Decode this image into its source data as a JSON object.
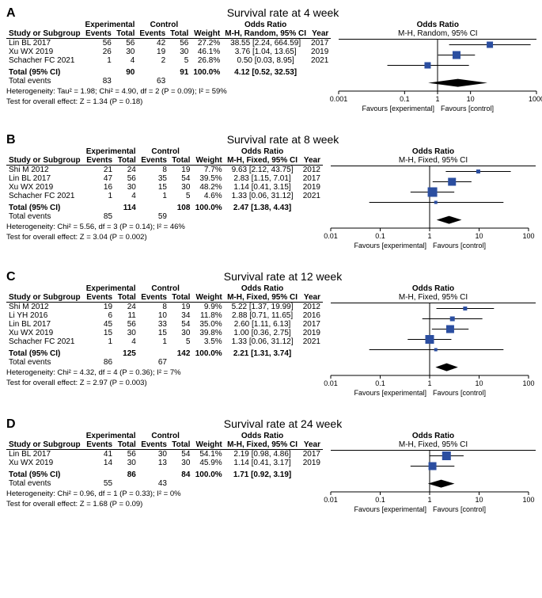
{
  "background_color": "#ffffff",
  "text_color": "#000000",
  "marker_color": "#2b4ea0",
  "marker_color_alt": "#1e3a8a",
  "diamond_color": "#000000",
  "line_color": "#000000",
  "headers": {
    "study": "Study or Subgroup",
    "exp_group": "Experimental",
    "ctrl_group": "Control",
    "events": "Events",
    "total": "Total",
    "weight": "Weight",
    "odds_ratio": "Odds Ratio",
    "year": "Year",
    "total_ci": "Total (95% CI)",
    "total_events": "Total events",
    "favours_exp": "Favours [experimental]",
    "favours_ctrl": "Favours [control]"
  },
  "panels": [
    {
      "label": "A",
      "title": "Survival rate at 4 week",
      "ci_header": "M-H, Random, 95% CI",
      "axis_ticks": [
        0.001,
        0.1,
        1,
        10,
        1000
      ],
      "axis_labels": [
        "0.001",
        "0.1",
        "1",
        "10",
        "1000"
      ],
      "axis_range": [
        0.001,
        1000
      ],
      "rows": [
        {
          "study": "Lin BL 2017",
          "ee": 56,
          "et": 56,
          "ce": 42,
          "ct": 56,
          "w": "27.2%",
          "or": 38.55,
          "lo": 2.24,
          "hi": 664.59,
          "ci": "38.55 [2.24, 664.59]",
          "yr": 2017,
          "sz": 8
        },
        {
          "study": "Xu WX 2019",
          "ee": 26,
          "et": 30,
          "ce": 19,
          "ct": 30,
          "w": "46.1%",
          "or": 3.76,
          "lo": 1.04,
          "hi": 13.65,
          "ci": "3.76 [1.04, 13.65]",
          "yr": 2019,
          "sz": 10
        },
        {
          "study": "Schacher FC 2021",
          "ee": 1,
          "et": 4,
          "ce": 2,
          "ct": 5,
          "w": "26.8%",
          "or": 0.5,
          "lo": 0.03,
          "hi": 8.95,
          "ci": "0.50 [0.03, 8.95]",
          "yr": 2021,
          "sz": 8
        }
      ],
      "total": {
        "et": 90,
        "ct": 91,
        "w": "100.0%",
        "or": 4.12,
        "lo": 0.52,
        "hi": 32.53,
        "ci": "4.12 [0.52, 32.53]",
        "ee": 83,
        "ce": 63
      },
      "het": "Heterogeneity: Tau² = 1.98; Chi² = 4.90, df = 2 (P = 0.09); I² = 59%",
      "eff": "Test for overall effect: Z = 1.34 (P = 0.18)"
    },
    {
      "label": "B",
      "title": "Survival rate at 8 week",
      "ci_header": "M-H, Fixed, 95% CI",
      "axis_ticks": [
        0.01,
        0.1,
        1,
        10,
        100
      ],
      "axis_labels": [
        "0.01",
        "0.1",
        "1",
        "10",
        "100"
      ],
      "axis_range": [
        0.01,
        100
      ],
      "rows": [
        {
          "study": "Shi M 2012",
          "ee": 21,
          "et": 24,
          "ce": 8,
          "ct": 19,
          "w": "7.7%",
          "or": 9.63,
          "lo": 2.12,
          "hi": 43.75,
          "ci": "9.63 [2.12, 43.75]",
          "yr": 2012,
          "sz": 5
        },
        {
          "study": "Lin BL 2017",
          "ee": 47,
          "et": 56,
          "ce": 35,
          "ct": 54,
          "w": "39.5%",
          "or": 2.83,
          "lo": 1.15,
          "hi": 7.01,
          "ci": "2.83 [1.15, 7.01]",
          "yr": 2017,
          "sz": 10
        },
        {
          "study": "Xu WX 2019",
          "ee": 16,
          "et": 30,
          "ce": 15,
          "ct": 30,
          "w": "48.2%",
          "or": 1.14,
          "lo": 0.41,
          "hi": 3.15,
          "ci": "1.14 [0.41, 3.15]",
          "yr": 2019,
          "sz": 12
        },
        {
          "study": "Schacher FC 2021",
          "ee": 1,
          "et": 4,
          "ce": 1,
          "ct": 5,
          "w": "4.6%",
          "or": 1.33,
          "lo": 0.06,
          "hi": 31.12,
          "ci": "1.33 [0.06, 31.12]",
          "yr": 2021,
          "sz": 4
        }
      ],
      "total": {
        "et": 114,
        "ct": 108,
        "w": "100.0%",
        "or": 2.47,
        "lo": 1.38,
        "hi": 4.43,
        "ci": "2.47 [1.38, 4.43]",
        "ee": 85,
        "ce": 59
      },
      "het": "Heterogeneity: Chi² = 5.56, df = 3 (P = 0.14); I² = 46%",
      "eff": "Test for overall effect: Z = 3.04 (P = 0.002)"
    },
    {
      "label": "C",
      "title": "Survival rate at 12 week",
      "ci_header": "M-H, Fixed, 95% CI",
      "axis_ticks": [
        0.01,
        0.1,
        1,
        10,
        100
      ],
      "axis_labels": [
        "0.01",
        "0.1",
        "1",
        "10",
        "100"
      ],
      "axis_range": [
        0.01,
        100
      ],
      "rows": [
        {
          "study": "Shi M 2012",
          "ee": 19,
          "et": 24,
          "ce": 8,
          "ct": 19,
          "w": "9.9%",
          "or": 5.22,
          "lo": 1.37,
          "hi": 19.99,
          "ci": "5.22 [1.37, 19.99]",
          "yr": 2012,
          "sz": 5
        },
        {
          "study": "Li YH 2016",
          "ee": 6,
          "et": 11,
          "ce": 10,
          "ct": 34,
          "w": "11.8%",
          "or": 2.88,
          "lo": 0.71,
          "hi": 11.65,
          "ci": "2.88 [0.71, 11.65]",
          "yr": 2016,
          "sz": 6
        },
        {
          "study": "Lin BL 2017",
          "ee": 45,
          "et": 56,
          "ce": 33,
          "ct": 54,
          "w": "35.0%",
          "or": 2.6,
          "lo": 1.11,
          "hi": 6.13,
          "ci": "2.60 [1.11, 6.13]",
          "yr": 2017,
          "sz": 10
        },
        {
          "study": "Xu WX 2019",
          "ee": 15,
          "et": 30,
          "ce": 15,
          "ct": 30,
          "w": "39.8%",
          "or": 1.0,
          "lo": 0.36,
          "hi": 2.75,
          "ci": "1.00 [0.36, 2.75]",
          "yr": 2019,
          "sz": 11
        },
        {
          "study": "Schacher FC 2021",
          "ee": 1,
          "et": 4,
          "ce": 1,
          "ct": 5,
          "w": "3.5%",
          "or": 1.33,
          "lo": 0.06,
          "hi": 31.12,
          "ci": "1.33 [0.06, 31.12]",
          "yr": 2021,
          "sz": 4
        }
      ],
      "total": {
        "et": 125,
        "ct": 142,
        "w": "100.0%",
        "or": 2.21,
        "lo": 1.31,
        "hi": 3.74,
        "ci": "2.21 [1.31, 3.74]",
        "ee": 86,
        "ce": 67
      },
      "het": "Heterogeneity: Chi² = 4.32, df = 4 (P = 0.36); I² = 7%",
      "eff": "Test for overall effect: Z = 2.97 (P = 0.003)"
    },
    {
      "label": "D",
      "title": "Survival rate at 24 week",
      "ci_header": "M-H, Fixed, 95% CI",
      "axis_ticks": [
        0.01,
        0.1,
        1,
        10,
        100
      ],
      "axis_labels": [
        "0.01",
        "0.1",
        "1",
        "10",
        "100"
      ],
      "axis_range": [
        0.01,
        100
      ],
      "rows": [
        {
          "study": "Lin BL 2017",
          "ee": 41,
          "et": 56,
          "ce": 30,
          "ct": 54,
          "w": "54.1%",
          "or": 2.19,
          "lo": 0.98,
          "hi": 4.86,
          "ci": "2.19 [0.98, 4.86]",
          "yr": 2017,
          "sz": 11
        },
        {
          "study": "Xu WX 2019",
          "ee": 14,
          "et": 30,
          "ce": 13,
          "ct": 30,
          "w": "45.9%",
          "or": 1.14,
          "lo": 0.41,
          "hi": 3.17,
          "ci": "1.14 [0.41, 3.17]",
          "yr": 2019,
          "sz": 10
        }
      ],
      "total": {
        "et": 86,
        "ct": 84,
        "w": "100.0%",
        "or": 1.71,
        "lo": 0.92,
        "hi": 3.19,
        "ci": "1.71 [0.92, 3.19]",
        "ee": 55,
        "ce": 43
      },
      "het": "Heterogeneity: Chi² = 0.96, df = 1 (P = 0.33); I² = 0%",
      "eff": "Test for overall effect: Z = 1.68 (P = 0.09)"
    }
  ]
}
